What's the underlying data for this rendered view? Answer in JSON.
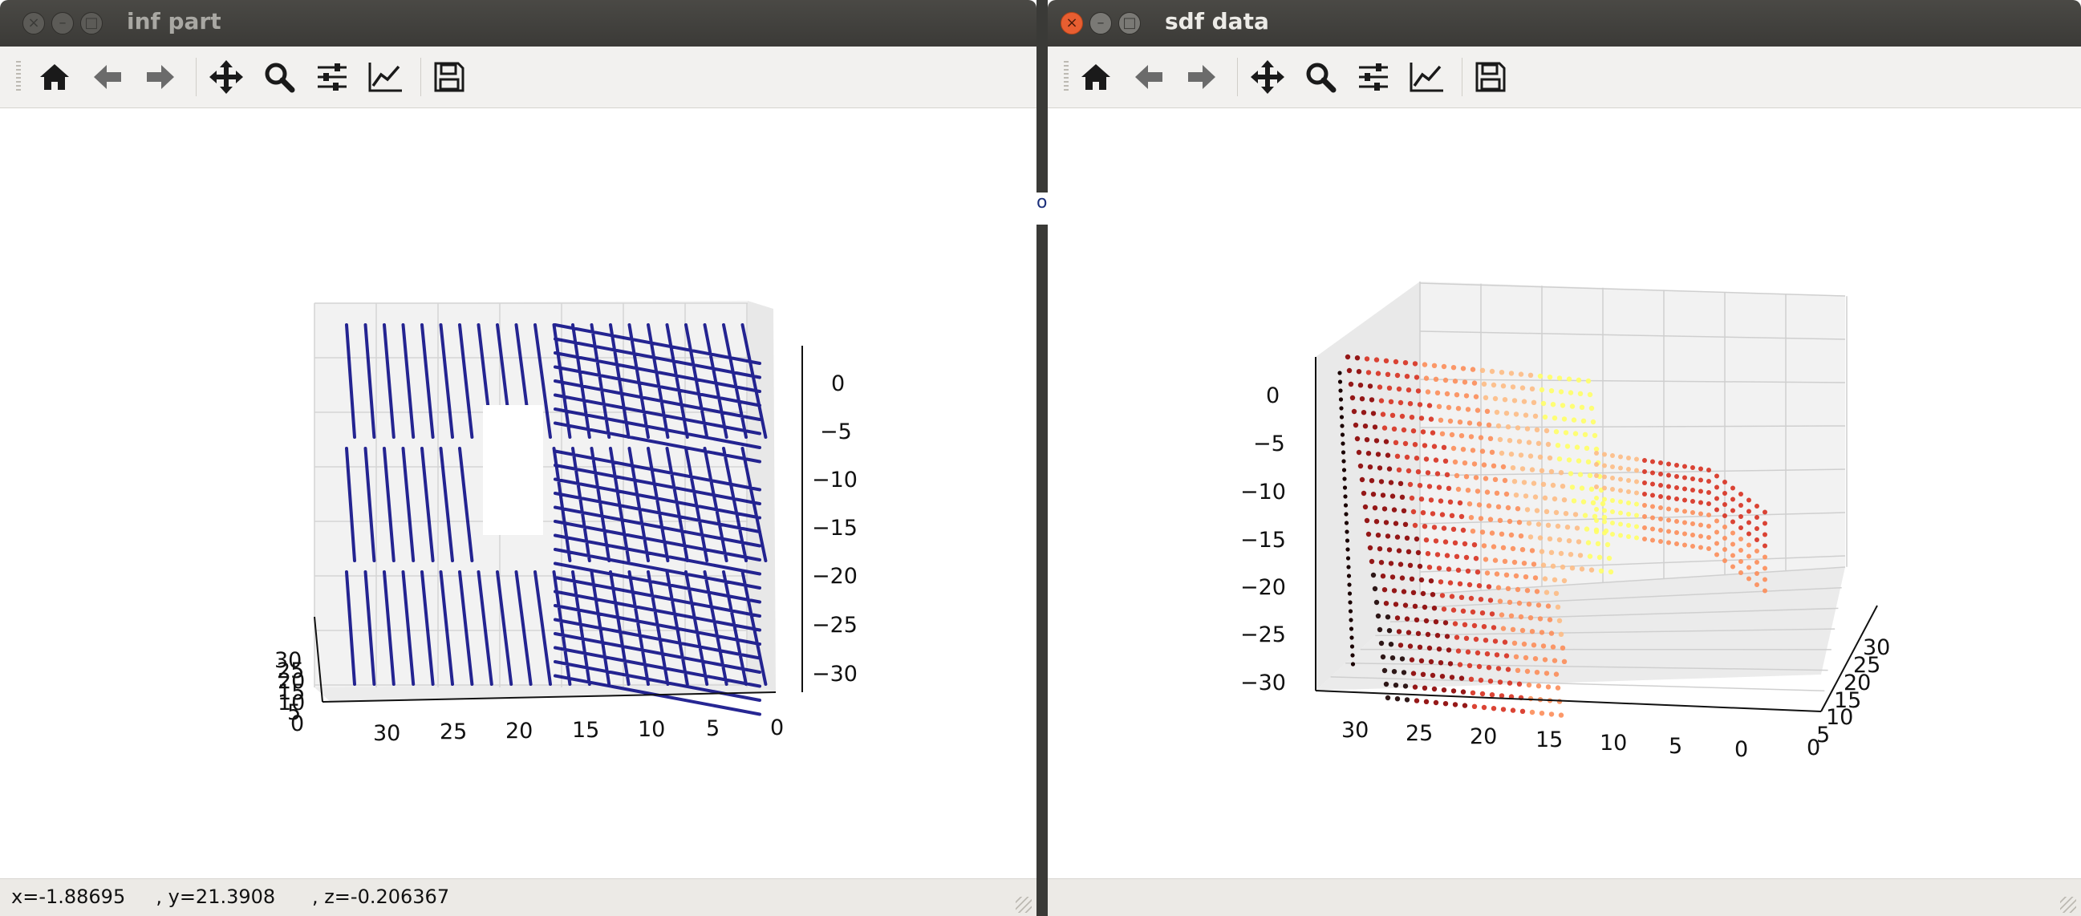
{
  "windows": [
    {
      "title": "inf part",
      "status": "x=-1.88695     , y=21.3908      , z=-0.206367",
      "toolbar": [
        "home-icon",
        "back-arrow-icon",
        "forward-arrow-icon",
        "pan-move-icon",
        "zoom-magnifier-icon",
        "configure-subplots-icon",
        "edit-axis-icon",
        "save-floppy-icon"
      ],
      "plot": {
        "x_ticks": [
          "30",
          "25",
          "20",
          "15",
          "10",
          "5",
          "0"
        ],
        "z_ticks": [
          "0",
          "−5",
          "−10",
          "−15",
          "−20",
          "−25",
          "−30"
        ],
        "y_ticks": [
          "30",
          "25",
          "20",
          "15",
          "10",
          "5",
          "0"
        ],
        "point_color": "#000080"
      }
    },
    {
      "title": "sdf data",
      "status": "",
      "toolbar": [
        "home-icon",
        "back-arrow-icon",
        "forward-arrow-icon",
        "pan-move-icon",
        "zoom-magnifier-icon",
        "configure-subplots-icon",
        "edit-axis-icon",
        "save-floppy-icon"
      ],
      "plot": {
        "x_ticks": [
          "30",
          "25",
          "20",
          "15",
          "10",
          "5",
          "0"
        ],
        "z_ticks": [
          "0",
          "−5",
          "−10",
          "−15",
          "−20",
          "−25",
          "−30"
        ],
        "y_ticks": [
          "30",
          "25",
          "20",
          "15",
          "10",
          "5",
          "0"
        ],
        "colormap": [
          "#1a0000",
          "#8b0000",
          "#d7301f",
          "#fc8d59",
          "#fdbb84",
          "#ffff66"
        ]
      }
    }
  ],
  "background_text": "oh"
}
